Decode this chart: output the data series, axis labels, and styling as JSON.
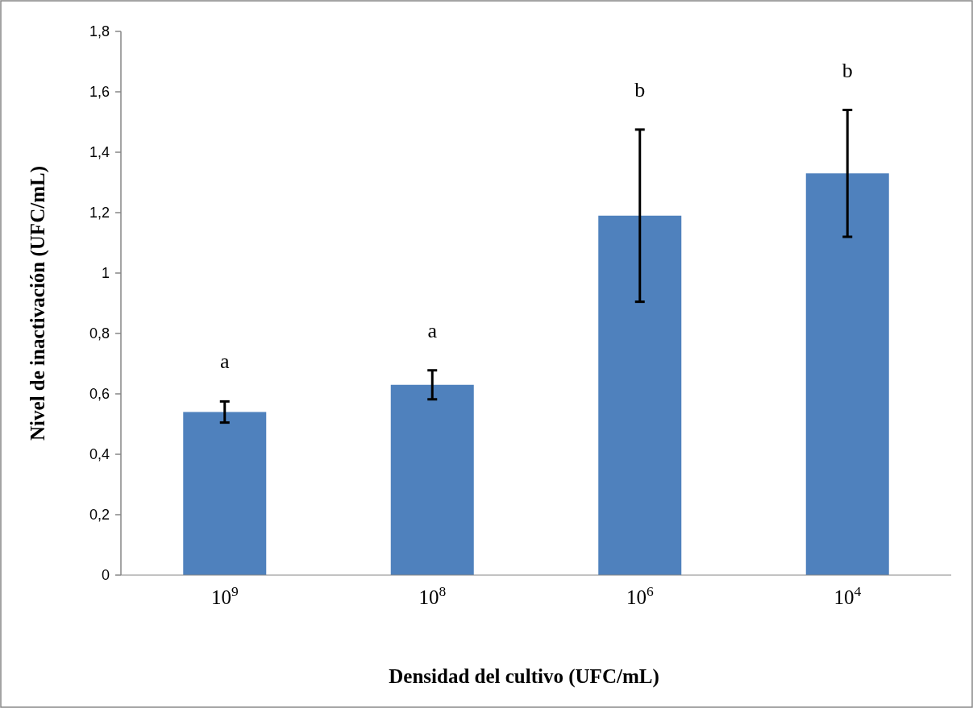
{
  "chart_data": {
    "type": "bar",
    "xlabel": "Densidad del cultivo (UFC/mL)",
    "ylabel": "Nivel de inactivación (UFC/mL)",
    "categories": [
      "10$^{9}$",
      "10$^{8}$",
      "10$^{6}$",
      "10$^{4}$"
    ],
    "values": [
      0.54,
      0.63,
      1.19,
      1.33
    ],
    "errors": [
      0.035,
      0.048,
      0.285,
      0.21
    ],
    "color": "#4f81bd",
    "ylim": [
      0,
      1.8
    ],
    "yticks": [
      {
        "value": 0,
        "label": "0"
      },
      {
        "value": 0.2,
        "label": "0,2"
      },
      {
        "value": 0.4,
        "label": "0,4"
      },
      {
        "value": 0.6,
        "label": "0,6"
      },
      {
        "value": 0.8,
        "label": "0,8"
      },
      {
        "value": 1,
        "label": "1"
      },
      {
        "value": 1.2,
        "label": "1,2"
      },
      {
        "value": 1.4,
        "label": "1,4"
      },
      {
        "value": 1.6,
        "label": "1,6"
      },
      {
        "value": 1.8,
        "label": "1,8"
      }
    ],
    "annotations": [
      "a",
      "a",
      "b",
      "b"
    ]
  }
}
